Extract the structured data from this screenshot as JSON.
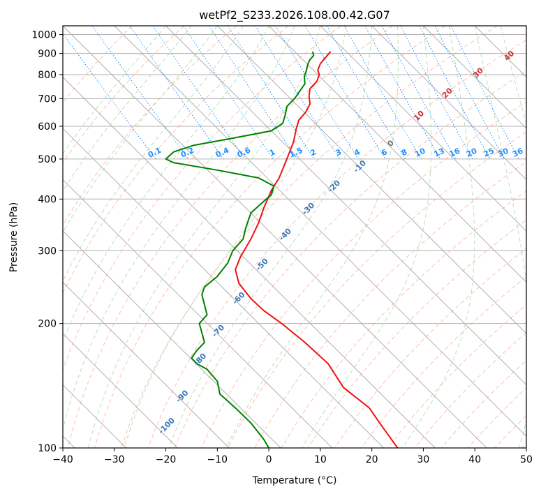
{
  "chart_data": {
    "type": "skew-t",
    "title": "wetPf2_S233.2026.108.00.42.G07",
    "xlabel": "Temperature (°C)",
    "ylabel": "Pressure (hPa)",
    "xlim": [
      -40,
      50
    ],
    "ylim": [
      1050,
      100
    ],
    "x_ticks": [
      -40,
      -30,
      -20,
      -10,
      0,
      10,
      20,
      30,
      40,
      50
    ],
    "x_tick_labels": [
      "−40",
      "−30",
      "−20",
      "−10",
      "0",
      "10",
      "20",
      "30",
      "40",
      "50"
    ],
    "y_ticks": [
      100,
      200,
      300,
      400,
      500,
      600,
      700,
      800,
      900,
      1000
    ],
    "y_tick_labels": [
      "100",
      "200",
      "300",
      "400",
      "500",
      "600",
      "700",
      "800",
      "900",
      "1000"
    ],
    "temperature_profile": {
      "name": "Temperature",
      "color": "#ee1111",
      "points": [
        {
          "p": 910,
          "x": 12.0
        },
        {
          "p": 880,
          "x": 11.0
        },
        {
          "p": 850,
          "x": 10.0
        },
        {
          "p": 820,
          "x": 9.5
        },
        {
          "p": 800,
          "x": 9.8
        },
        {
          "p": 770,
          "x": 9.3
        },
        {
          "p": 740,
          "x": 8.0
        },
        {
          "p": 710,
          "x": 7.8
        },
        {
          "p": 680,
          "x": 8.0
        },
        {
          "p": 650,
          "x": 7.2
        },
        {
          "p": 620,
          "x": 5.8
        },
        {
          "p": 590,
          "x": 5.3
        },
        {
          "p": 550,
          "x": 4.8
        },
        {
          "p": 500,
          "x": 3.5
        },
        {
          "p": 450,
          "x": 2.0
        },
        {
          "p": 420,
          "x": 0.5
        },
        {
          "p": 380,
          "x": -1.0
        },
        {
          "p": 350,
          "x": -2.0
        },
        {
          "p": 320,
          "x": -3.5
        },
        {
          "p": 290,
          "x": -5.5
        },
        {
          "p": 270,
          "x": -6.5
        },
        {
          "p": 250,
          "x": -5.8
        },
        {
          "p": 230,
          "x": -3.5
        },
        {
          "p": 215,
          "x": -1.0
        },
        {
          "p": 200,
          "x": 2.5
        },
        {
          "p": 180,
          "x": 7.0
        },
        {
          "p": 160,
          "x": 11.5
        },
        {
          "p": 140,
          "x": 14.5
        },
        {
          "p": 125,
          "x": 19.5
        },
        {
          "p": 115,
          "x": 21.5
        },
        {
          "p": 100,
          "x": 25.0
        }
      ]
    },
    "dewpoint_profile": {
      "name": "Dewpoint",
      "color": "#008000",
      "points": [
        {
          "p": 910,
          "x": 8.5
        },
        {
          "p": 890,
          "x": 8.7
        },
        {
          "p": 870,
          "x": 8.0
        },
        {
          "p": 850,
          "x": 7.6
        },
        {
          "p": 820,
          "x": 7.3
        },
        {
          "p": 790,
          "x": 6.9
        },
        {
          "p": 760,
          "x": 7.0
        },
        {
          "p": 730,
          "x": 6.0
        },
        {
          "p": 700,
          "x": 5.0
        },
        {
          "p": 670,
          "x": 3.5
        },
        {
          "p": 640,
          "x": 3.2
        },
        {
          "p": 610,
          "x": 2.7
        },
        {
          "p": 585,
          "x": 0.5
        },
        {
          "p": 560,
          "x": -7.5
        },
        {
          "p": 540,
          "x": -14.5
        },
        {
          "p": 520,
          "x": -18.5
        },
        {
          "p": 500,
          "x": -20.0
        },
        {
          "p": 490,
          "x": -18.5
        },
        {
          "p": 470,
          "x": -10.0
        },
        {
          "p": 450,
          "x": -2.0
        },
        {
          "p": 430,
          "x": 1.0
        },
        {
          "p": 410,
          "x": 0.5
        },
        {
          "p": 390,
          "x": -1.5
        },
        {
          "p": 370,
          "x": -3.5
        },
        {
          "p": 340,
          "x": -4.5
        },
        {
          "p": 320,
          "x": -5.0
        },
        {
          "p": 300,
          "x": -7.0
        },
        {
          "p": 280,
          "x": -8.0
        },
        {
          "p": 260,
          "x": -10.0
        },
        {
          "p": 245,
          "x": -12.5
        },
        {
          "p": 235,
          "x": -13.0
        },
        {
          "p": 222,
          "x": -12.5
        },
        {
          "p": 210,
          "x": -12.0
        },
        {
          "p": 200,
          "x": -13.5
        },
        {
          "p": 190,
          "x": -13.0
        },
        {
          "p": 180,
          "x": -12.5
        },
        {
          "p": 172,
          "x": -14.0
        },
        {
          "p": 165,
          "x": -15.0
        },
        {
          "p": 160,
          "x": -14.0
        },
        {
          "p": 155,
          "x": -12.0
        },
        {
          "p": 145,
          "x": -10.0
        },
        {
          "p": 135,
          "x": -9.5
        },
        {
          "p": 125,
          "x": -6.5
        },
        {
          "p": 115,
          "x": -3.5
        },
        {
          "p": 105,
          "x": -1.0
        },
        {
          "p": 100,
          "x": 0.0
        }
      ]
    },
    "isotherm_labels": [
      {
        "text": "-100",
        "x": -19.5,
        "p": 112
      },
      {
        "text": "-90",
        "x": -16.5,
        "p": 132
      },
      {
        "text": "-80",
        "x": -13.0,
        "p": 162
      },
      {
        "text": "-70",
        "x": -9.5,
        "p": 190
      },
      {
        "text": "-60",
        "x": -5.5,
        "p": 228
      },
      {
        "text": "-50",
        "x": -1.0,
        "p": 275
      },
      {
        "text": "-40",
        "x": 3.5,
        "p": 325
      },
      {
        "text": "-30",
        "x": 8.0,
        "p": 375
      },
      {
        "text": "-20",
        "x": 13.0,
        "p": 425
      },
      {
        "text": "-10",
        "x": 18.0,
        "p": 475
      }
    ],
    "isotherm_label_color": "#3a78b8",
    "mixing_ratio_labels": [
      "0.1",
      "0.2",
      "0.4",
      "0.6",
      "1",
      "1.5",
      "2",
      "3",
      "4",
      "6",
      "8",
      "10",
      "13",
      "16",
      "20",
      "25",
      "30",
      "36"
    ],
    "mixing_ratio_color": "#1e90ff",
    "moist_adiabat_labels": [
      {
        "text": "0",
        "x": 24,
        "p": 540,
        "color": "#777777"
      },
      {
        "text": "10",
        "x": 29.5,
        "p": 630,
        "color": "#d03030"
      },
      {
        "text": "20",
        "x": 35,
        "p": 715,
        "color": "#d03030"
      },
      {
        "text": "30",
        "x": 41,
        "p": 800,
        "color": "#d03030"
      },
      {
        "text": "40",
        "x": 47,
        "p": 880,
        "color": "#d03030"
      }
    ],
    "dry_adiabat_color": "#fa8c6e",
    "moist_adiabat_color": "#a8d8a8",
    "grid": true
  }
}
